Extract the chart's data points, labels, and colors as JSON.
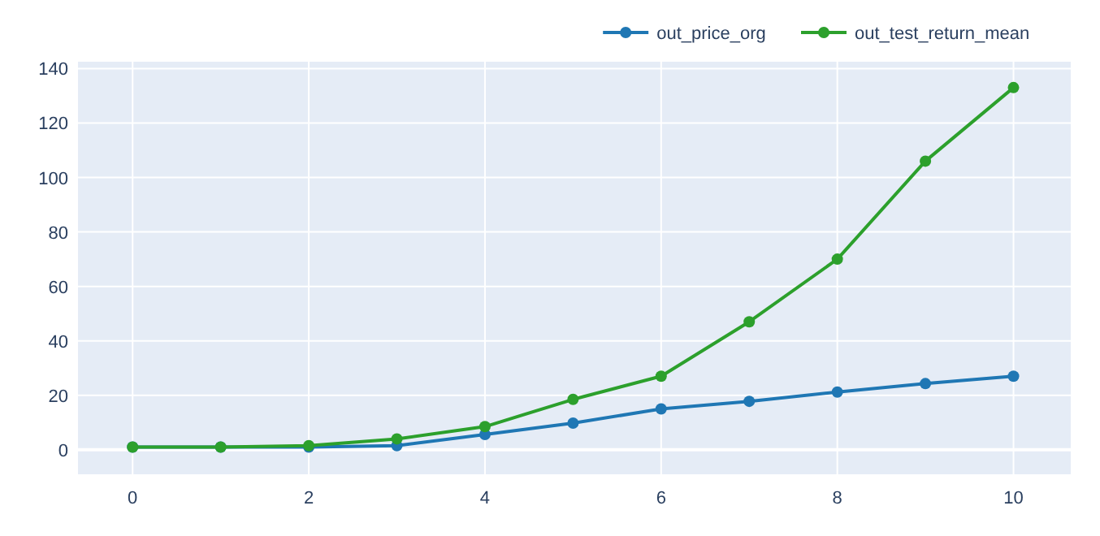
{
  "chart_data": {
    "type": "line",
    "x": [
      0,
      1,
      2,
      3,
      4,
      5,
      6,
      7,
      8,
      9,
      10
    ],
    "series": [
      {
        "name": "out_price_org",
        "color": "#1f77b4",
        "values": [
          1,
          1,
          1,
          1.5,
          5.6,
          9.8,
          15,
          17.8,
          21.2,
          24.3,
          27
        ]
      },
      {
        "name": "out_test_return_mean",
        "color": "#2ca02c",
        "values": [
          1,
          1,
          1.5,
          4,
          8.5,
          18.5,
          27,
          47,
          70,
          106,
          133
        ]
      }
    ],
    "xlim": [
      -0.62,
      10.65
    ],
    "xticks": [
      0,
      2,
      4,
      6,
      8,
      10
    ],
    "ylim": [
      -9,
      142.5
    ],
    "yticks": [
      0,
      20,
      40,
      60,
      80,
      100,
      120,
      140
    ],
    "grid": true,
    "legend": "top right",
    "marker": "circle",
    "line_style": "solid"
  }
}
